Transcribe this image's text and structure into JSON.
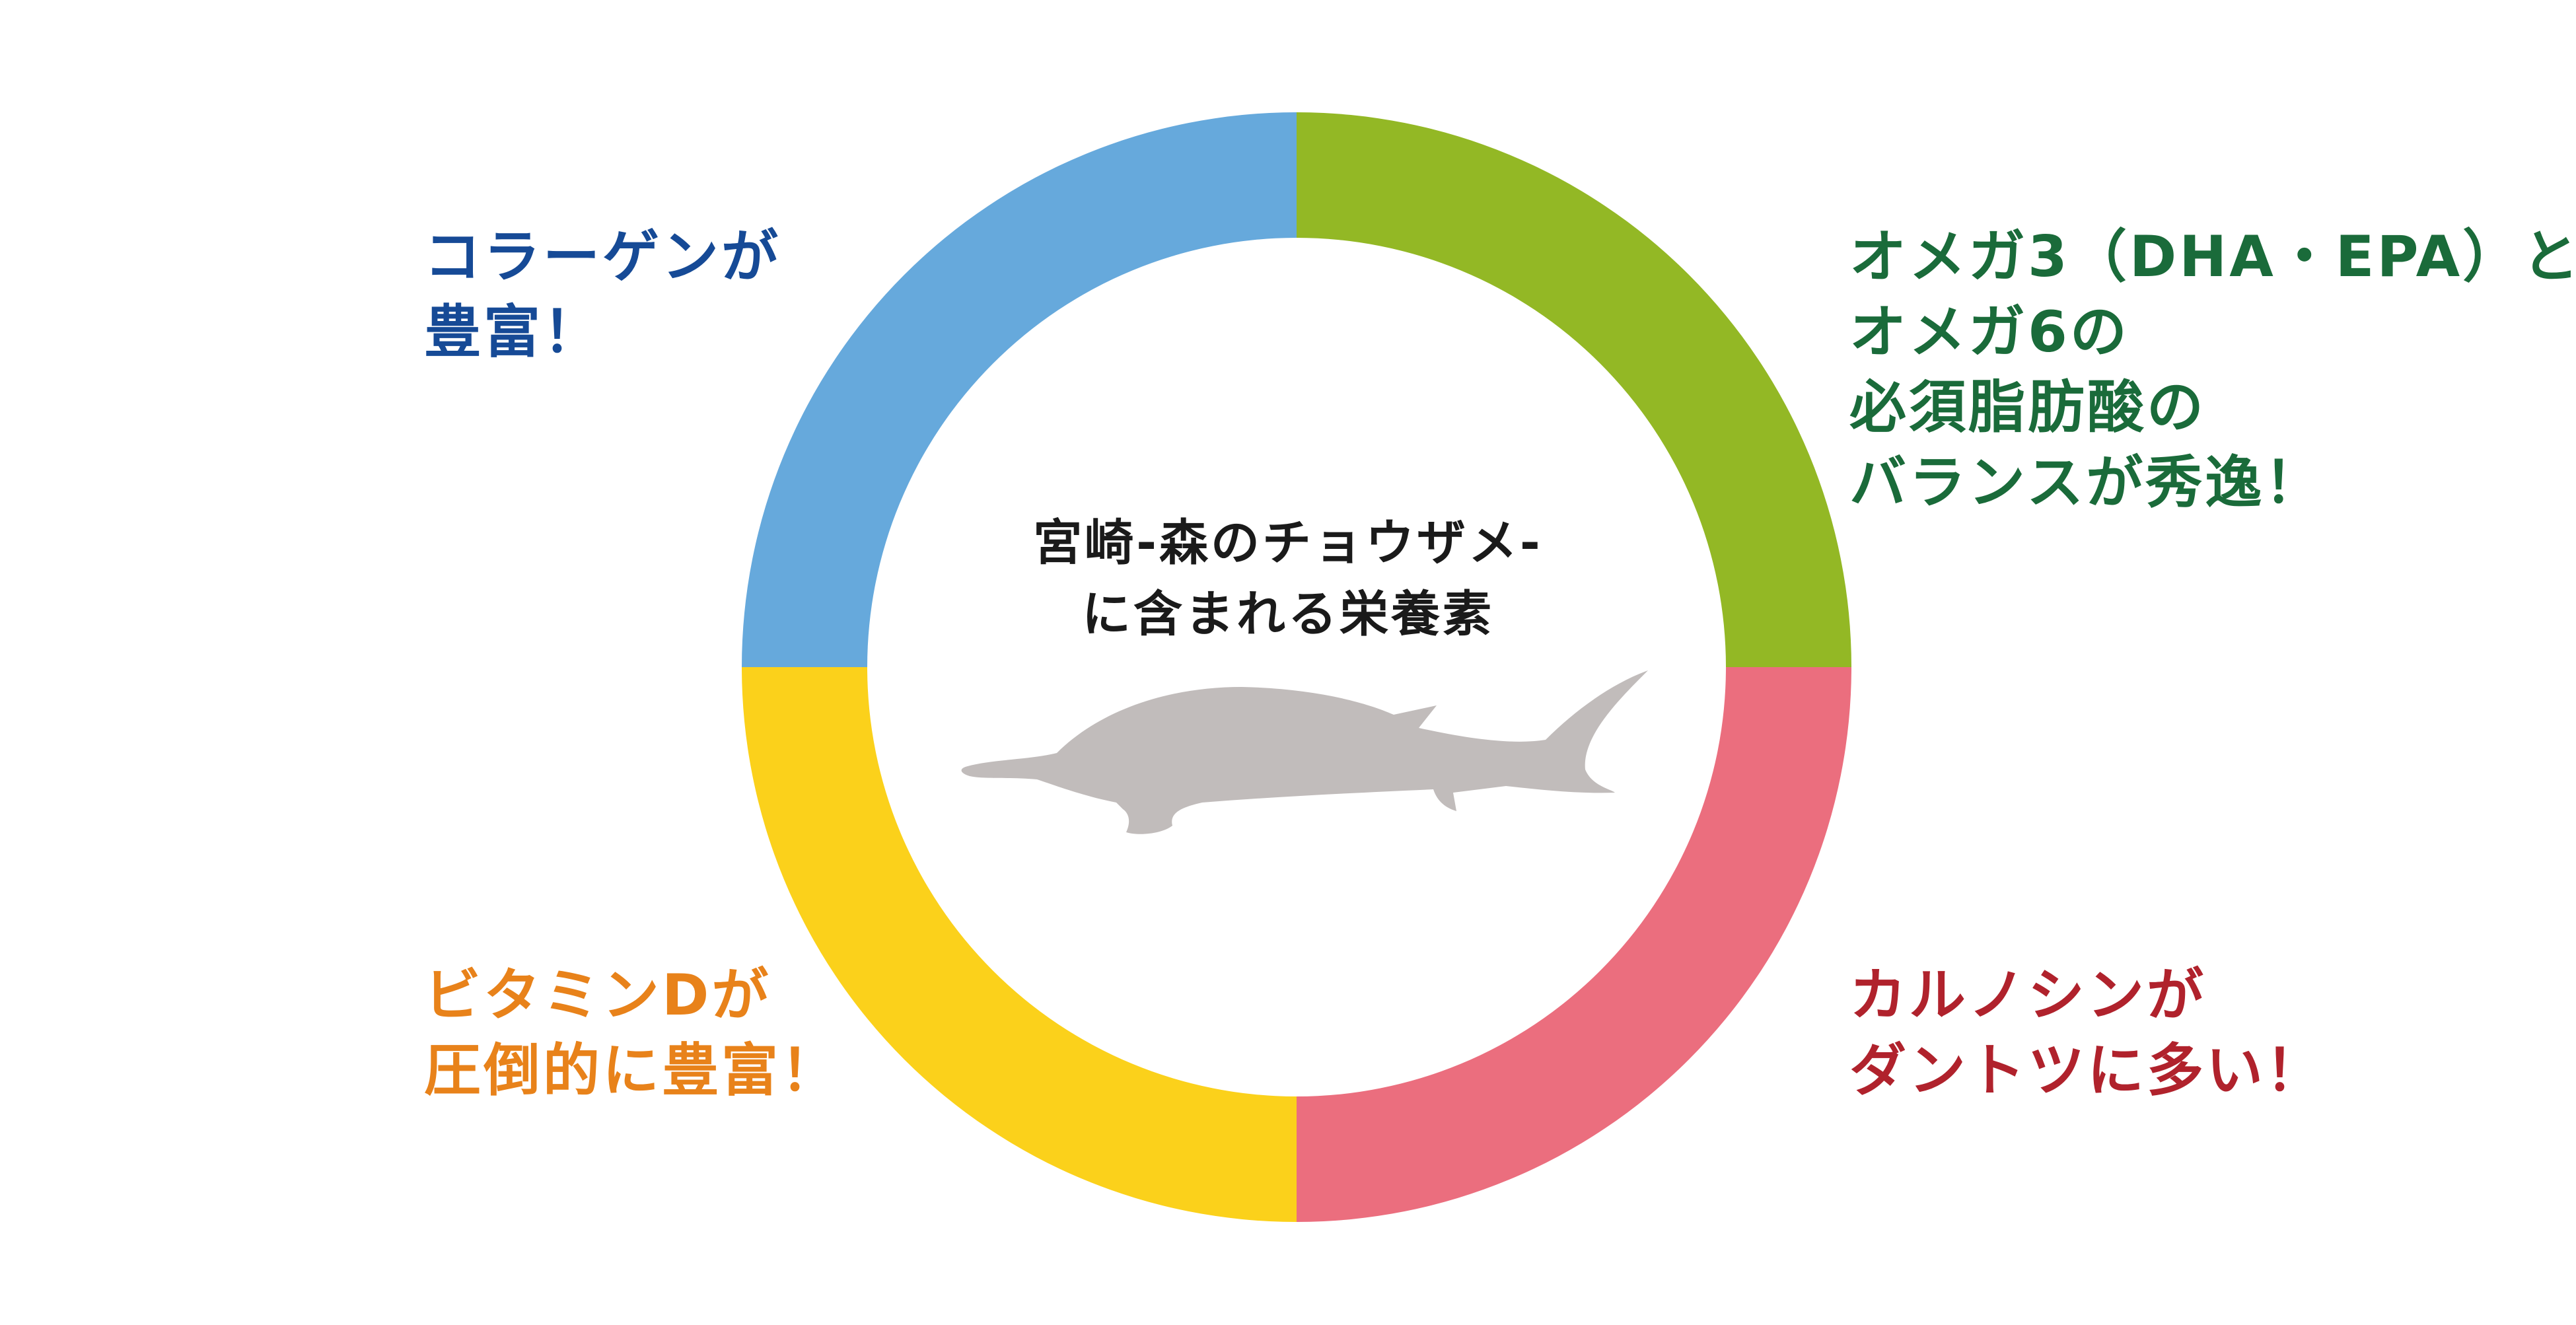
{
  "center_title": {
    "line1": "宮崎-森のチョウザメ-",
    "line2": "に含まれる栄養素"
  },
  "segments": [
    {
      "id": "collagen",
      "color": "#66a9dc",
      "label_color": "#164a96",
      "lines": [
        "コラーゲンが",
        "豊富！"
      ]
    },
    {
      "id": "omega",
      "color": "#93b825",
      "label_color": "#1a6b3a",
      "lines": [
        "オメガ3（DHA・EPA）と",
        "オメガ6の",
        "必須脂肪酸の",
        "バランスが秀逸！"
      ]
    },
    {
      "id": "carnosine",
      "color": "#eb6e7e",
      "label_color": "#b0222c",
      "lines": [
        "カルノシンが",
        "ダントツに多い！"
      ]
    },
    {
      "id": "vitamin-d",
      "color": "#fbd11b",
      "label_color": "#e8821a",
      "lines": [
        "ビタミンDが",
        "圧倒的に豊富！"
      ]
    }
  ],
  "illustration": {
    "icon": "sturgeon-fish-icon",
    "color": "#c1bcbb"
  }
}
